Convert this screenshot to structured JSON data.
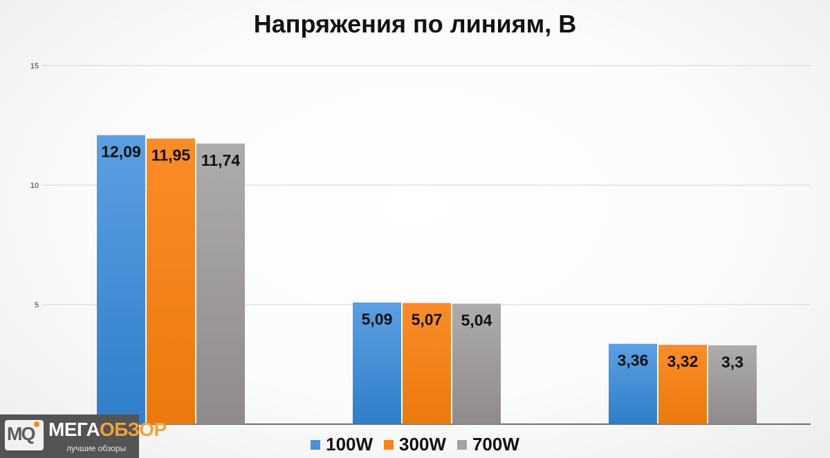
{
  "chart_data": {
    "type": "bar",
    "title": "Напряжения по линиям, В",
    "xlabel": "",
    "ylabel": "",
    "ylim": [
      0,
      15
    ],
    "yticks": [
      5,
      10,
      15
    ],
    "grid": true,
    "legend_position": "bottom",
    "categories": [
      "",
      "",
      ""
    ],
    "series": [
      {
        "name": "100W",
        "color": "#4a90d9",
        "values": [
          12.09,
          5.09,
          3.36
        ],
        "labels": [
          "12,09",
          "5,09",
          "3,36"
        ]
      },
      {
        "name": "300W",
        "color": "#f58420",
        "values": [
          11.95,
          5.07,
          3.32
        ],
        "labels": [
          "11,95",
          "5,07",
          "3,32"
        ]
      },
      {
        "name": "700W",
        "color": "#a5a2a2",
        "values": [
          11.74,
          5.04,
          3.3
        ],
        "labels": [
          "11,74",
          "5,04",
          "3,3"
        ]
      }
    ]
  },
  "logo": {
    "mark": "MQ",
    "main_part1": "МЕГА",
    "main_part2": "ОБЗОР",
    "tagline": "лучшие обзоры"
  }
}
